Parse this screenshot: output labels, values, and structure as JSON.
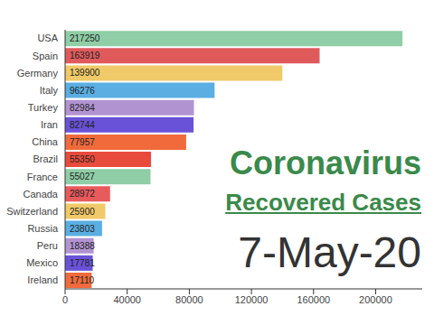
{
  "chart_data": {
    "type": "bar",
    "orientation": "horizontal",
    "title": "Coronavirus",
    "subtitle": "Recovered Cases",
    "annotations": [
      "7-May-20"
    ],
    "categories": [
      "USA",
      "Spain",
      "Germany",
      "Italy",
      "Turkey",
      "Iran",
      "China",
      "Brazil",
      "France",
      "Canada",
      "Switzerland",
      "Russia",
      "Peru",
      "Mexico",
      "Ireland"
    ],
    "values": [
      217250,
      163919,
      139900,
      96276,
      82984,
      82744,
      77957,
      55350,
      55027,
      28972,
      25900,
      23803,
      18388,
      17781,
      17110
    ],
    "colors": [
      "#8fcea6",
      "#e05a5c",
      "#f0ca68",
      "#5aaee2",
      "#b293d2",
      "#6a52d8",
      "#f06a3c",
      "#e84b3c",
      "#8fcea6",
      "#e85a5c",
      "#f0ca68",
      "#5aaee2",
      "#b293d2",
      "#6a52d8",
      "#f06a3c"
    ],
    "xlim": [
      0,
      230000
    ],
    "xticks": [
      0,
      40000,
      80000,
      120000,
      160000,
      200000
    ],
    "data_labels": true,
    "grid": false
  }
}
